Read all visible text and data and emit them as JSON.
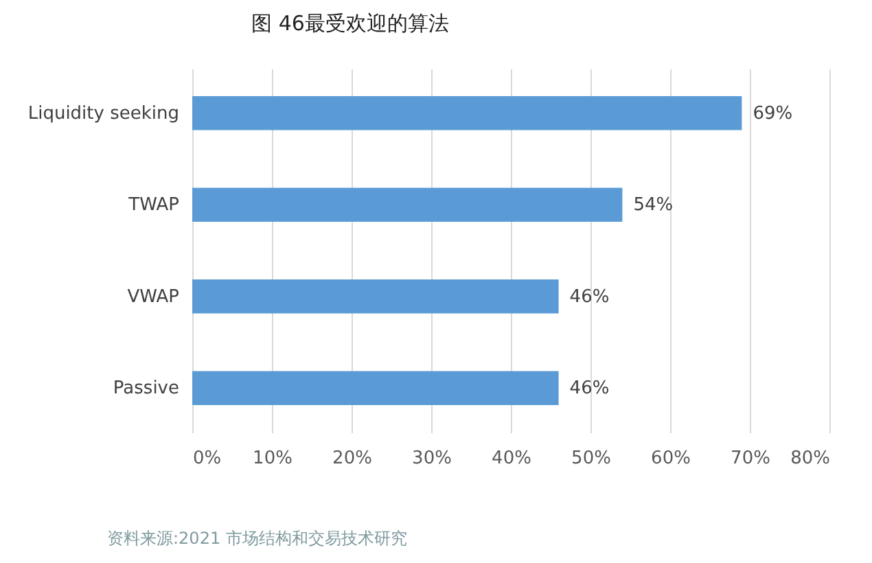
{
  "chart_data": {
    "type": "bar",
    "orientation": "horizontal",
    "title": "图 46最受欢迎的算法",
    "categories": [
      "Liquidity seeking",
      "TWAP",
      "VWAP",
      "Passive"
    ],
    "values": [
      69,
      54,
      46,
      46
    ],
    "color": "#5b9bd5",
    "value_labels": [
      "69%",
      "54%",
      "46%",
      "46%"
    ],
    "xlim": [
      0,
      80
    ],
    "xticks": [
      {
        "value": 0,
        "label": "0%"
      },
      {
        "value": 10,
        "label": "10%"
      },
      {
        "value": 20,
        "label": "20%"
      },
      {
        "value": 30,
        "label": "30%"
      },
      {
        "value": 40,
        "label": "40%"
      },
      {
        "value": 50,
        "label": "50%"
      },
      {
        "value": 60,
        "label": "60%"
      },
      {
        "value": 70,
        "label": "70%"
      },
      {
        "value": 80,
        "label": "80%"
      }
    ],
    "grid": "x",
    "annotations": [
      "资料来源:2021 市场结构和交易技术研究"
    ]
  }
}
